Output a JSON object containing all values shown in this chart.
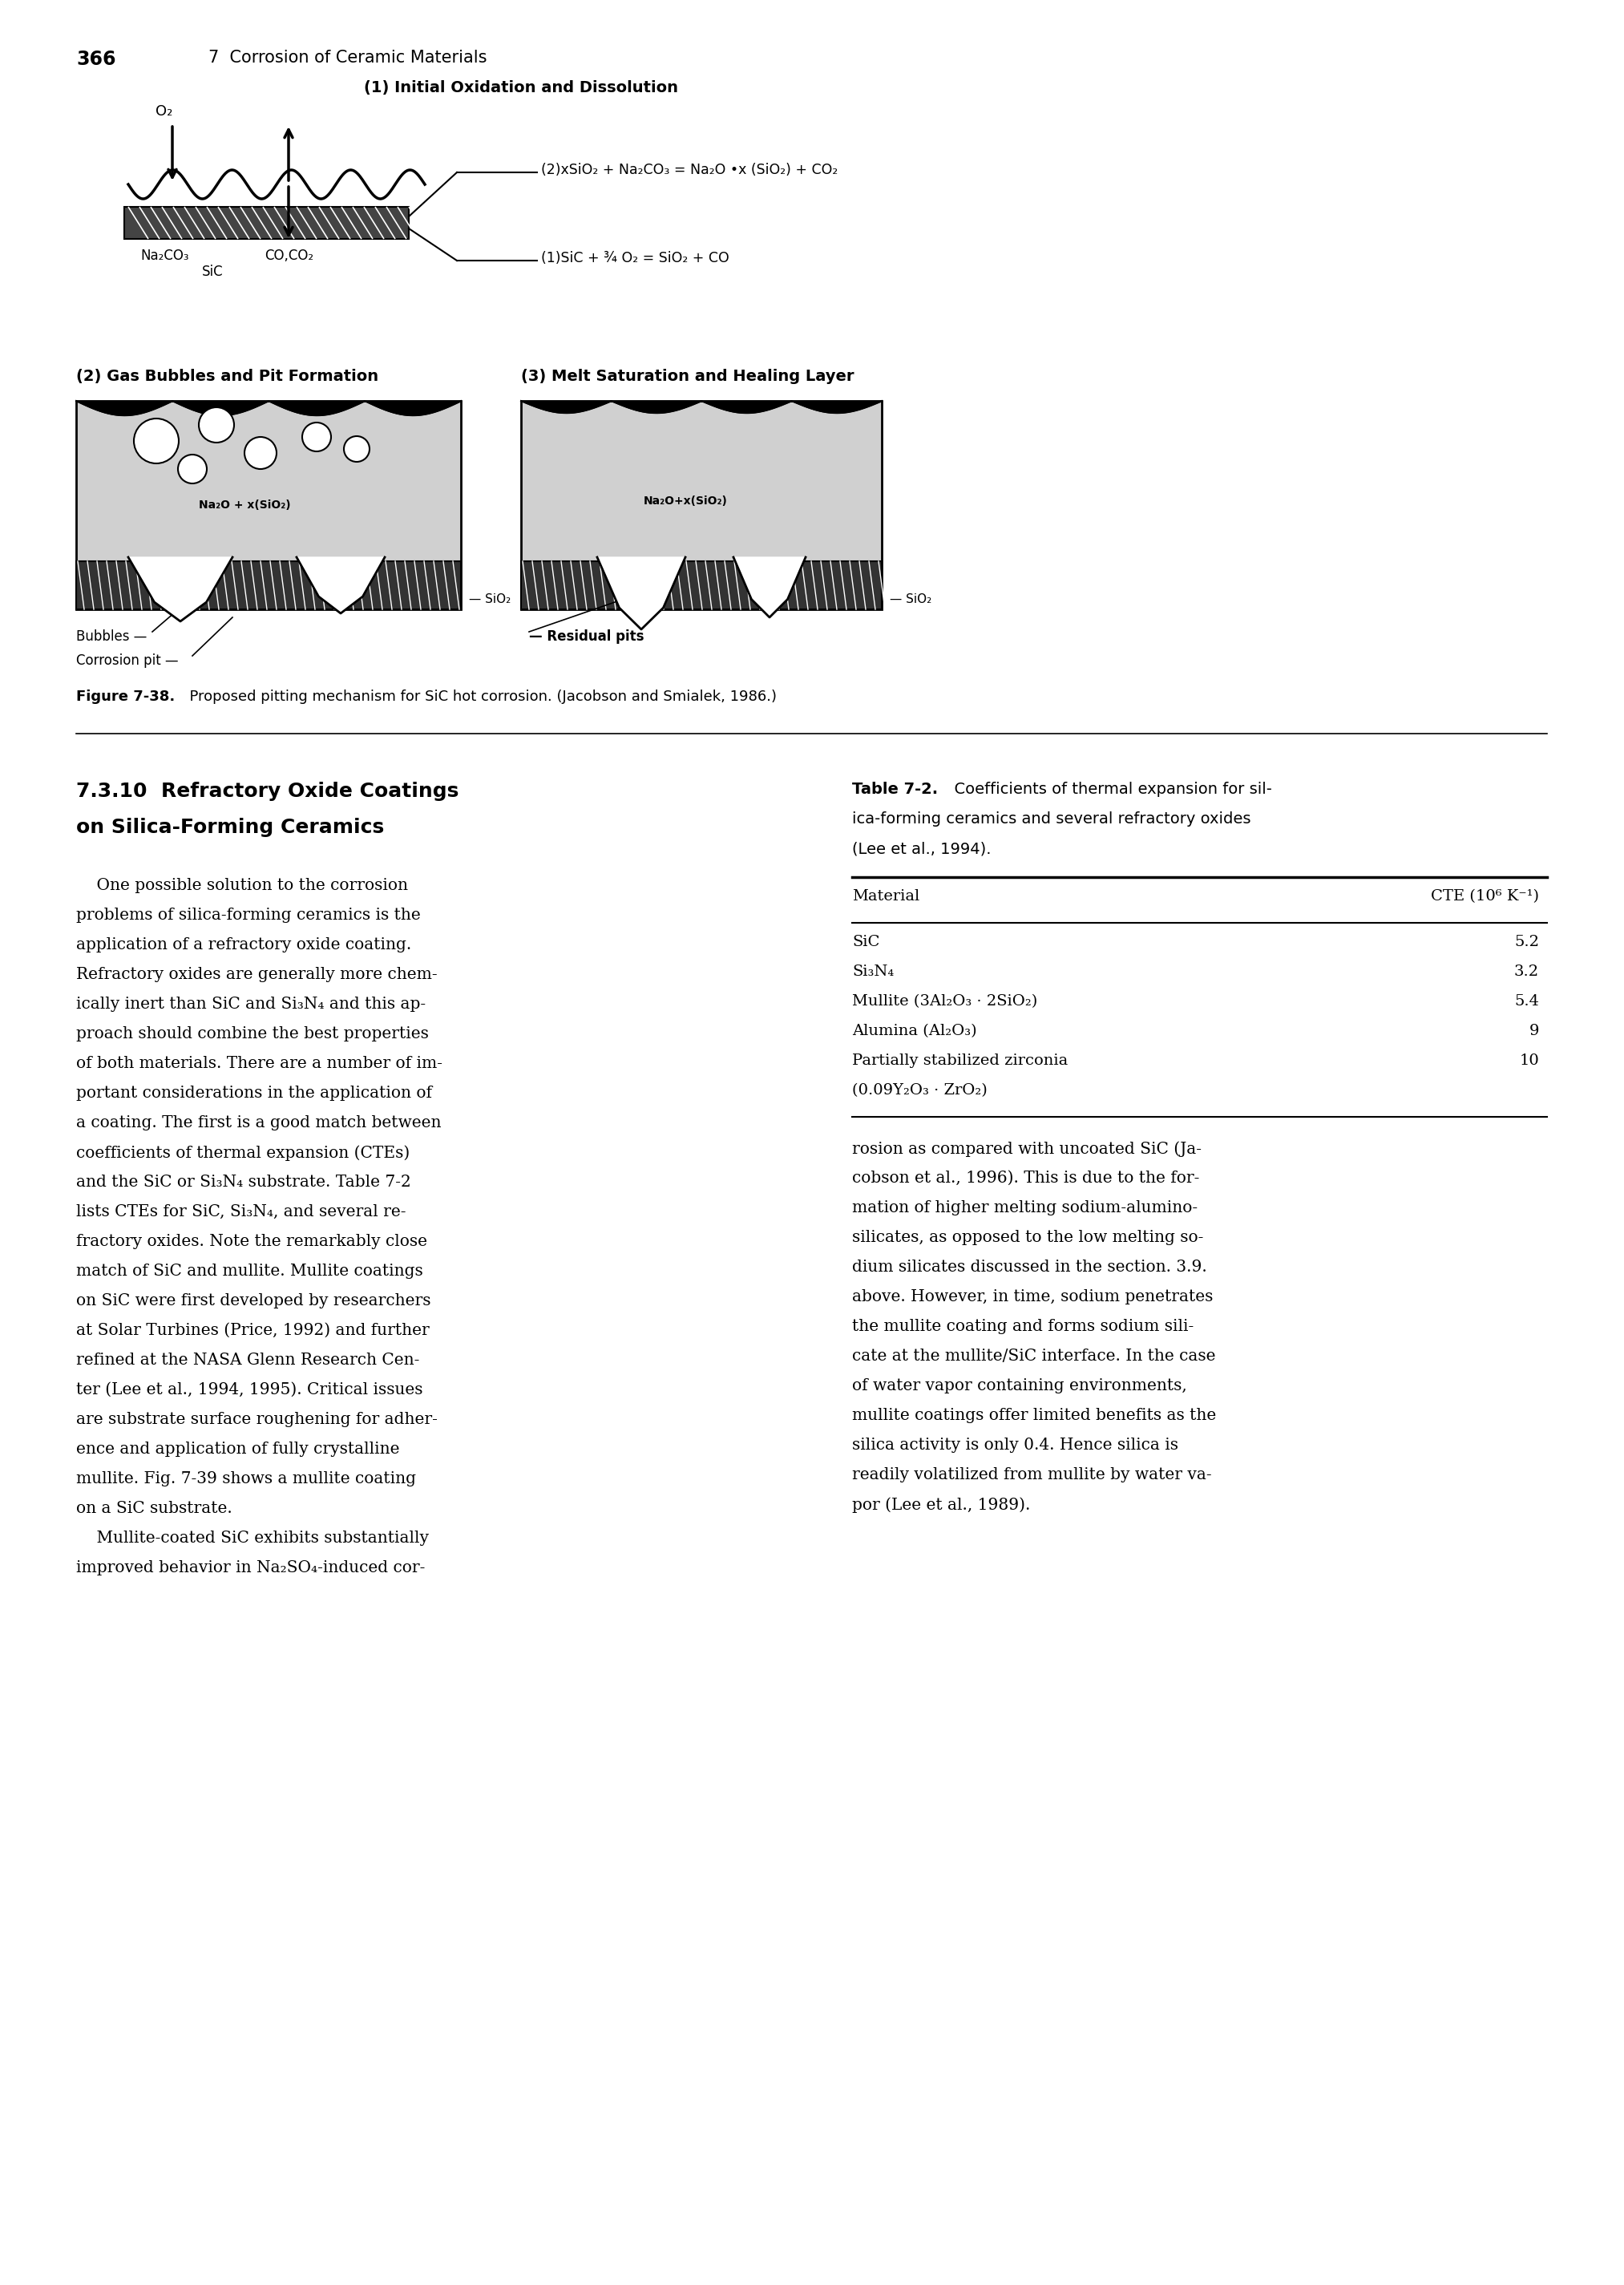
{
  "page_number": "366",
  "chapter_header": "7  Corrosion of Ceramic Materials",
  "figure_caption_bold": "Figure 7-38.",
  "figure_caption_rest": "  Proposed pitting mechanism for SiC hot corrosion. (Jacobson and Smialek, 1986.)",
  "section_title_line1": "7.3.10  Refractory Oxide Coatings",
  "section_title_line2": "on Silica-Forming Ceramics",
  "table_title_bold": "Table 7-2.",
  "table_title_rest": "  Coefficients of thermal expansion for silica-forming ceramics and several refractory oxides (Lee et al., 1994).",
  "table_header_col1": "Material",
  "table_header_col2": "CTE (10⁶ K⁻¹)",
  "table_rows": [
    [
      "SiC",
      "5.2"
    ],
    [
      "Si₃N₄",
      "3.2"
    ],
    [
      "Mullite (3Al₂O₃ · 2SiO₂)",
      "5.4"
    ],
    [
      "Alumina (Al₂O₃)",
      "9"
    ],
    [
      "Partially stabilized zirconia",
      "10"
    ],
    [
      "(0.09Y₂O₃ · ZrO₂)",
      ""
    ]
  ],
  "body_left_lines": [
    "    One possible solution to the corrosion",
    "problems of silica-forming ceramics is the",
    "application of a refractory oxide coating.",
    "Refractory oxides are generally more chem-",
    "ically inert than SiC and Si₃N₄ and this ap-",
    "proach should combine the best properties",
    "of both materials. There are a number of im-",
    "portant considerations in the application of",
    "a coating. The first is a good match between",
    "coefficients of thermal expansion (CTEs)",
    "and the SiC or Si₃N₄ substrate. Table 7-2",
    "lists CTEs for SiC, Si₃N₄, and several re-",
    "fractory oxides. Note the remarkably close",
    "match of SiC and mullite. Mullite coatings",
    "on SiC were first developed by researchers",
    "at Solar Turbines (Price, 1992) and further",
    "refined at the NASA Glenn Research Cen-",
    "ter (Lee et al., 1994, 1995). Critical issues",
    "are substrate surface roughening for adher-",
    "ence and application of fully crystalline",
    "mullite. Fig. 7-39 shows a mullite coating",
    "on a SiC substrate.",
    "    Mullite-coated SiC exhibits substantially",
    "improved behavior in Na₂SO₄-induced cor-"
  ],
  "body_right_lines": [
    "rosion as compared with uncoated SiC (Ja-",
    "cobson et al., 1996). This is due to the for-",
    "mation of higher melting sodium-alumino-",
    "silicates, as opposed to the low melting so-",
    "dium silicates discussed in the section. 3.9.",
    "above. However, in time, sodium penetrates",
    "the mullite coating and forms sodium sili-",
    "cate at the mullite/SiC interface. In the case",
    "of water vapor containing environments,",
    "mullite coatings offer limited benefits as the",
    "silica activity is only 0.4. Hence silica is",
    "readily volatilized from mullite by water va-",
    "por (Lee et al., 1989)."
  ],
  "diagram1_title": "(1) Initial Oxidation and Dissolution",
  "diagram2_title": "(2) Gas Bubbles and Pit Formation",
  "diagram3_title": "(3) Melt Saturation and Healing Layer",
  "eq1": "— ⁻²⁾ xSiO₂ + Na₂CO₃ = Na₂O •x (SiO₂) + CO₂",
  "eq2": "— ⁻¹⁾ SiC + ¾ O₂ = SiO₂ + CO",
  "label_O2": "O₂",
  "label_Na2CO3": "Na₂CO₃",
  "label_CO_CO2": "CO,CO₂",
  "label_SiC_diag1": "SiC",
  "label_SiO2_diag2": "— SiO₂",
  "label_SiO2_diag3": "— SiO₂",
  "label_Na2O_1": "Na₂O + x(SiO₂)",
  "label_Na2O_2": "Na₂O+x(SiO₂)",
  "label_bubbles": "Bubbles —",
  "label_corrosion_pit": "Corrosion pit —",
  "label_residual_pits": "— Residual pits",
  "background_color": "#ffffff"
}
